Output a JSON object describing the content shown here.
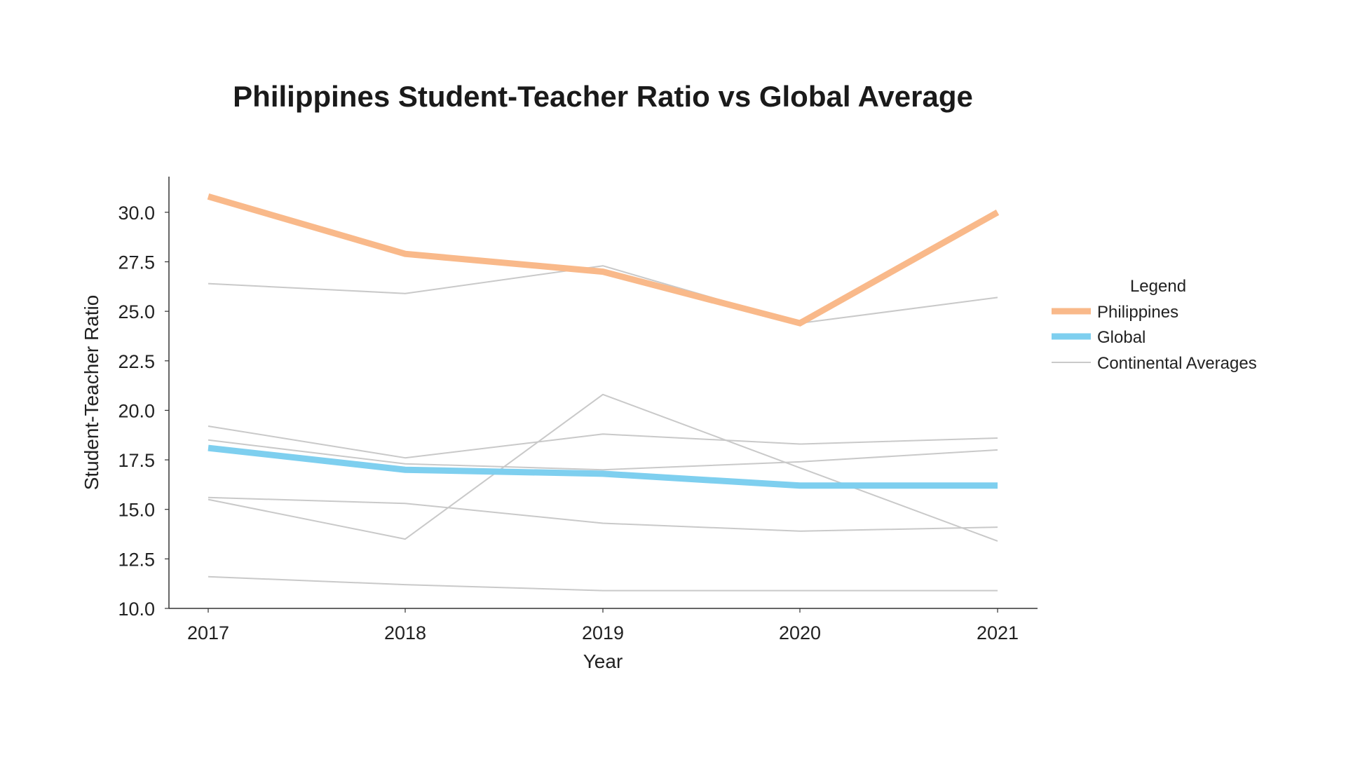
{
  "chart_data": {
    "type": "line",
    "title": "Philippines Student-Teacher Ratio vs Global Average",
    "xlabel": "Year",
    "ylabel": "Student-Teacher Ratio",
    "x": [
      "2017",
      "2018",
      "2019",
      "2020",
      "2021"
    ],
    "ylim": [
      10.0,
      31.8
    ],
    "yticks": [
      "10.0",
      "12.5",
      "15.0",
      "17.5",
      "20.0",
      "22.5",
      "25.0",
      "27.5",
      "30.0"
    ],
    "grid": false,
    "legend": {
      "title": "Legend",
      "placement": "right",
      "entries": [
        "Philippines",
        "Global",
        "Continental Averages"
      ]
    },
    "series": [
      {
        "name": "Philippines",
        "color": "#F9B98A",
        "values": [
          30.8,
          27.9,
          27.0,
          24.4,
          30.0
        ]
      },
      {
        "name": "Global",
        "color": "#7ECFEF",
        "values": [
          18.1,
          17.0,
          16.8,
          16.2,
          16.2
        ]
      }
    ],
    "continental_color": "#C9C9C9",
    "continental_series": [
      {
        "values": [
          26.4,
          25.9,
          27.3,
          24.4,
          25.7
        ]
      },
      {
        "values": [
          19.2,
          17.6,
          18.8,
          18.3,
          18.6
        ]
      },
      {
        "values": [
          18.5,
          17.3,
          17.0,
          17.4,
          18.0
        ]
      },
      {
        "values": [
          15.6,
          15.3,
          14.3,
          13.9,
          14.1
        ]
      },
      {
        "values": [
          15.5,
          13.5,
          20.8,
          17.1,
          13.4
        ]
      },
      {
        "values": [
          11.6,
          11.2,
          10.9,
          10.9,
          10.9
        ]
      }
    ]
  }
}
